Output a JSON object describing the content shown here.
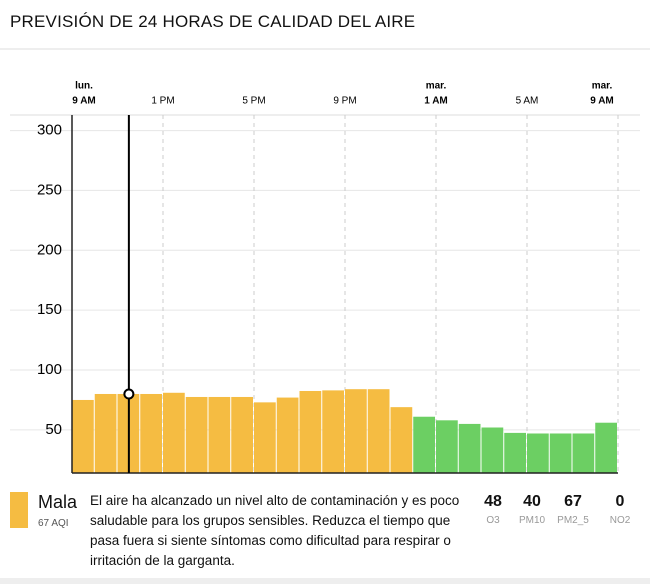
{
  "header": {
    "title": "PREVISIÓN DE 24 HORAS DE CALIDAD DEL AIRE"
  },
  "chart_data": {
    "type": "bar",
    "values": [
      75,
      80,
      80,
      80,
      81,
      77.5,
      77.5,
      77.5,
      73,
      77,
      82.5,
      83,
      84,
      84,
      69,
      61,
      58,
      55,
      52,
      47.5,
      47,
      47,
      47,
      56
    ],
    "colors": [
      "#f5bc42",
      "#f5bc42",
      "#f5bc42",
      "#f5bc42",
      "#f5bc42",
      "#f5bc42",
      "#f5bc42",
      "#f5bc42",
      "#f5bc42",
      "#f5bc42",
      "#f5bc42",
      "#f5bc42",
      "#f5bc42",
      "#f5bc42",
      "#f5bc42",
      "#6ccf63",
      "#6ccf63",
      "#6ccf63",
      "#6ccf63",
      "#6ccf63",
      "#6ccf63",
      "#6ccf63",
      "#6ccf63",
      "#6ccf63"
    ],
    "xlim": [
      0,
      24
    ],
    "xticks": [
      {
        "value": 0,
        "label": "9 AM",
        "day": "lun."
      },
      {
        "value": 4,
        "label": "1 PM"
      },
      {
        "value": 8,
        "label": "5 PM"
      },
      {
        "value": 12,
        "label": "9 PM"
      },
      {
        "value": 16,
        "label": "1 AM",
        "day": "mar."
      },
      {
        "value": 20,
        "label": "5 AM"
      },
      {
        "value": 24,
        "label": "9 AM",
        "day": "mar."
      }
    ],
    "ylim": [
      14,
      313
    ],
    "yticks": [
      50,
      100,
      150,
      200,
      250,
      300
    ],
    "grid": true,
    "cursor_index": 2
  },
  "summary": {
    "level": "Mala",
    "aqi": "67 AQI",
    "color": "#f5bc42",
    "description": "El aire ha alcanzado un nivel alto de contaminación y es poco saludable para los grupos sensibles. Reduzca el tiempo que pasa fuera si siente síntomas como dificultad para respirar o irritación de la garganta.",
    "pollutants": [
      {
        "value": "48",
        "name": "O3"
      },
      {
        "value": "40",
        "name": "PM10"
      },
      {
        "value": "67",
        "name": "PM2_5"
      },
      {
        "value": "0",
        "name": "NO2"
      }
    ]
  }
}
